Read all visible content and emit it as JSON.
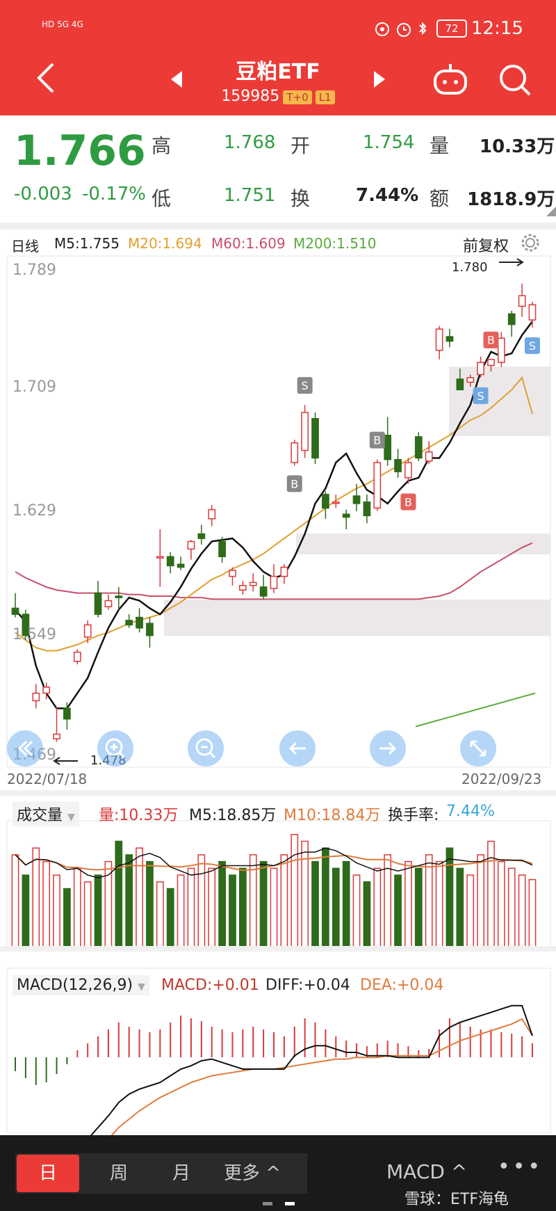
{
  "status_bar": {
    "network_left": "HD 5G 4G",
    "battery": "72",
    "time": "12:15"
  },
  "header": {
    "title": "豆粕ETF",
    "code": "159985",
    "badge_t0": "T+0",
    "badge_level": "L1"
  },
  "quote": {
    "price": "1.766",
    "change": "-0.003",
    "change_pct": "-0.17%",
    "high_label": "高",
    "high": "1.768",
    "open_label": "开",
    "open": "1.754",
    "volume_label": "量",
    "volume": "10.33万",
    "low_label": "低",
    "low": "1.751",
    "turnover_label": "换",
    "turnover": "7.44%",
    "amount_label": "额",
    "amount": "1818.9万"
  },
  "kline": {
    "period_label": "日线",
    "ma5": "M5:1.755",
    "ma20": "M20:1.694",
    "ma60": "M60:1.609",
    "ma200": "M200:1.510",
    "adjust_label": "前复权",
    "y_ticks": [
      "1.789",
      "1.709",
      "1.629",
      "1.549",
      "1.469"
    ],
    "max_label": "1.780",
    "min_label": "1.478",
    "start_date": "2022/07/18",
    "end_date": "2022/09/23",
    "marker_b": "B",
    "marker_s": "S"
  },
  "volume_panel": {
    "title": "成交量",
    "vol": "量:10.33万",
    "m5": "M5:18.85万",
    "m10": "M10:18.84万",
    "turnover_rate_label": "换手率:",
    "turnover_rate": "7.44%"
  },
  "macd_panel": {
    "title": "MACD(12,26,9)",
    "macd": "MACD:+0.01",
    "diff": "DIFF:+0.04",
    "dea": "DEA:+0.04"
  },
  "bottom_tabs": {
    "day": "日",
    "week": "周",
    "month": "月",
    "more": "更多",
    "indicator": "MACD",
    "watermark": "雪球：ETF海龟"
  },
  "colors": {
    "up": "#d9393a",
    "down": "#2e6b1b",
    "ma5": "#111111",
    "ma20": "#e0a030",
    "ma60": "#c8506a",
    "ma200": "#5aaa3c",
    "header": "#ec3b36"
  },
  "chart_data": {
    "type": "candlestick",
    "x_range": [
      "2022/07/18",
      "2022/09/23"
    ],
    "ylim": [
      1.469,
      1.789
    ],
    "candles_ohlc": [
      [
        1.566,
        1.576,
        1.56,
        1.562
      ],
      [
        1.562,
        1.565,
        1.545,
        1.548
      ],
      [
        1.505,
        1.516,
        1.5,
        1.51
      ],
      [
        1.51,
        1.517,
        1.506,
        1.514
      ],
      [
        1.48,
        1.501,
        1.478,
        1.483
      ],
      [
        1.5,
        1.504,
        1.486,
        1.493
      ],
      [
        1.531,
        1.539,
        1.529,
        1.537
      ],
      [
        1.547,
        1.558,
        1.543,
        1.555
      ],
      [
        1.576,
        1.584,
        1.56,
        1.562
      ],
      [
        1.567,
        1.575,
        1.565,
        1.571
      ],
      [
        1.574,
        1.58,
        1.565,
        1.573
      ],
      [
        1.558,
        1.562,
        1.553,
        1.555
      ],
      [
        1.56,
        1.566,
        1.55,
        1.553
      ],
      [
        1.556,
        1.56,
        1.54,
        1.548
      ],
      [
        1.6,
        1.618,
        1.58,
        1.6
      ],
      [
        1.6,
        1.603,
        1.589,
        1.594
      ],
      [
        1.595,
        1.6,
        1.591,
        1.593
      ],
      [
        1.605,
        1.611,
        1.598,
        1.61
      ],
      [
        1.615,
        1.621,
        1.608,
        1.612
      ],
      [
        1.625,
        1.634,
        1.62,
        1.631
      ],
      [
        1.61,
        1.613,
        1.596,
        1.6
      ],
      [
        1.587,
        1.593,
        1.581,
        1.591
      ],
      [
        1.578,
        1.584,
        1.575,
        1.581
      ],
      [
        1.581,
        1.589,
        1.577,
        1.583
      ],
      [
        1.58,
        1.588,
        1.572,
        1.574
      ],
      [
        1.579,
        1.595,
        1.576,
        1.587
      ],
      [
        1.587,
        1.595,
        1.582,
        1.593
      ],
      [
        1.662,
        1.677,
        1.66,
        1.675
      ],
      [
        1.67,
        1.7,
        1.665,
        1.695
      ],
      [
        1.691,
        1.695,
        1.661,
        1.665
      ],
      [
        1.641,
        1.643,
        1.625,
        1.632
      ],
      [
        1.636,
        1.641,
        1.632,
        1.636
      ],
      [
        1.628,
        1.631,
        1.618,
        1.626
      ],
      [
        1.64,
        1.648,
        1.63,
        1.635
      ],
      [
        1.636,
        1.641,
        1.622,
        1.627
      ],
      [
        1.632,
        1.664,
        1.63,
        1.662
      ],
      [
        1.68,
        1.692,
        1.66,
        1.664
      ],
      [
        1.664,
        1.671,
        1.652,
        1.656
      ],
      [
        1.652,
        1.665,
        1.648,
        1.662
      ],
      [
        1.679,
        1.682,
        1.663,
        1.665
      ],
      [
        1.663,
        1.676,
        1.661,
        1.669
      ],
      [
        1.736,
        1.752,
        1.73,
        1.75
      ],
      [
        1.745,
        1.75,
        1.738,
        1.742
      ],
      [
        1.717,
        1.724,
        1.712,
        1.71
      ],
      [
        1.715,
        1.72,
        1.712,
        1.718
      ],
      [
        1.72,
        1.732,
        1.718,
        1.728
      ],
      [
        1.726,
        1.73,
        1.722,
        1.73
      ],
      [
        1.728,
        1.748,
        1.725,
        1.744
      ],
      [
        1.76,
        1.762,
        1.745,
        1.753
      ],
      [
        1.765,
        1.78,
        1.758,
        1.772
      ],
      [
        1.756,
        1.768,
        1.751,
        1.766
      ]
    ],
    "ma5": [
      1.565,
      1.557,
      1.528,
      1.51,
      1.5,
      1.5,
      1.51,
      1.52,
      1.537,
      1.553,
      1.565,
      1.573,
      1.571,
      1.566,
      1.562,
      1.57,
      1.58,
      1.592,
      1.602,
      1.61,
      1.611,
      1.612,
      1.606,
      1.597,
      1.59,
      1.586,
      1.588,
      1.6,
      1.615,
      1.635,
      1.645,
      1.662,
      1.668,
      1.655,
      1.644,
      1.64,
      1.635,
      1.643,
      1.65,
      1.652,
      1.665,
      1.665,
      1.675,
      1.688,
      1.7,
      1.722,
      1.735,
      1.732,
      1.734,
      1.746,
      1.755
    ],
    "ma20": [
      1.55,
      1.545,
      1.54,
      1.538,
      1.538,
      1.54,
      1.542,
      1.545,
      1.548,
      1.55,
      1.553,
      1.556,
      1.558,
      1.56,
      1.562,
      1.566,
      1.57,
      1.575,
      1.58,
      1.585,
      1.588,
      1.592,
      1.595,
      1.598,
      1.602,
      1.607,
      1.612,
      1.617,
      1.622,
      1.627,
      1.632,
      1.637,
      1.641,
      1.645,
      1.648,
      1.652,
      1.656,
      1.66,
      1.664,
      1.668,
      1.672,
      1.676,
      1.68,
      1.685,
      1.69,
      1.693,
      1.698,
      1.704,
      1.71,
      1.718,
      1.694
    ],
    "ma60": [
      1.59,
      1.586,
      1.583,
      1.58,
      1.578,
      1.577,
      1.576,
      1.576,
      1.576,
      1.576,
      1.576,
      1.575,
      1.575,
      1.574,
      1.574,
      1.574,
      1.573,
      1.573,
      1.573,
      1.572,
      1.572,
      1.572,
      1.572,
      1.572,
      1.572,
      1.572,
      1.572,
      1.572,
      1.572,
      1.572,
      1.572,
      1.572,
      1.572,
      1.572,
      1.572,
      1.572,
      1.572,
      1.572,
      1.572,
      1.572,
      1.573,
      1.574,
      1.576,
      1.58,
      1.585,
      1.59,
      1.594,
      1.598,
      1.602,
      1.606,
      1.609
    ],
    "ma200": [
      1.488,
      1.51
    ],
    "volume": [
      14,
      11,
      15,
      13,
      11,
      9,
      12,
      10,
      11,
      13,
      16,
      14,
      15,
      13,
      10,
      9,
      11,
      12,
      14,
      12,
      13,
      11,
      12,
      14,
      13,
      12,
      14,
      17,
      16,
      13,
      15,
      12,
      13,
      11,
      10,
      12,
      14,
      11,
      13,
      12,
      14,
      13,
      15,
      12,
      11,
      14,
      16,
      13,
      12,
      11,
      10.33
    ],
    "volume_up": [
      true,
      false,
      true,
      true,
      true,
      false,
      true,
      true,
      false,
      true,
      false,
      false,
      true,
      false,
      true,
      false,
      true,
      true,
      true,
      true,
      false,
      false,
      false,
      true,
      false,
      true,
      true,
      true,
      true,
      false,
      false,
      false,
      false,
      true,
      false,
      true,
      true,
      false,
      true,
      false,
      true,
      true,
      false,
      false,
      true,
      true,
      true,
      true,
      true,
      true,
      true
    ],
    "macd_hist": [
      -0.01,
      -0.015,
      -0.02,
      -0.018,
      -0.012,
      -0.005,
      0.005,
      0.01,
      0.015,
      0.02,
      0.025,
      0.022,
      0.02,
      0.018,
      0.02,
      0.025,
      0.03,
      0.028,
      0.026,
      0.022,
      0.02,
      0.018,
      0.02,
      0.022,
      0.02,
      0.018,
      0.015,
      0.022,
      0.028,
      0.025,
      0.02,
      0.015,
      0.012,
      0.01,
      0.008,
      0.01,
      0.012,
      0.01,
      0.008,
      0.005,
      0.006,
      0.02,
      0.028,
      0.025,
      0.022,
      0.02,
      0.02,
      0.018,
      0.017,
      0.015,
      0.01
    ],
    "diff": [
      -0.02,
      -0.025,
      -0.035,
      -0.04,
      -0.045,
      -0.04,
      -0.03,
      -0.022,
      -0.015,
      -0.008,
      0.0,
      0.005,
      0.008,
      0.01,
      0.012,
      0.016,
      0.02,
      0.022,
      0.025,
      0.026,
      0.024,
      0.022,
      0.02,
      0.02,
      0.02,
      0.02,
      0.02,
      0.028,
      0.032,
      0.034,
      0.034,
      0.032,
      0.03,
      0.03,
      0.028,
      0.028,
      0.028,
      0.027,
      0.027,
      0.027,
      0.027,
      0.04,
      0.045,
      0.048,
      0.05,
      0.052,
      0.054,
      0.056,
      0.058,
      0.058,
      0.04
    ],
    "dea": [
      -0.03,
      -0.032,
      -0.035,
      -0.037,
      -0.04,
      -0.038,
      -0.035,
      -0.032,
      -0.028,
      -0.022,
      -0.015,
      -0.01,
      -0.005,
      -0.001,
      0.003,
      0.006,
      0.009,
      0.012,
      0.014,
      0.016,
      0.017,
      0.018,
      0.019,
      0.02,
      0.02,
      0.02,
      0.021,
      0.022,
      0.023,
      0.024,
      0.025,
      0.026,
      0.026,
      0.027,
      0.027,
      0.027,
      0.028,
      0.028,
      0.028,
      0.028,
      0.028,
      0.031,
      0.034,
      0.037,
      0.039,
      0.041,
      0.043,
      0.045,
      0.047,
      0.05,
      0.04
    ]
  }
}
